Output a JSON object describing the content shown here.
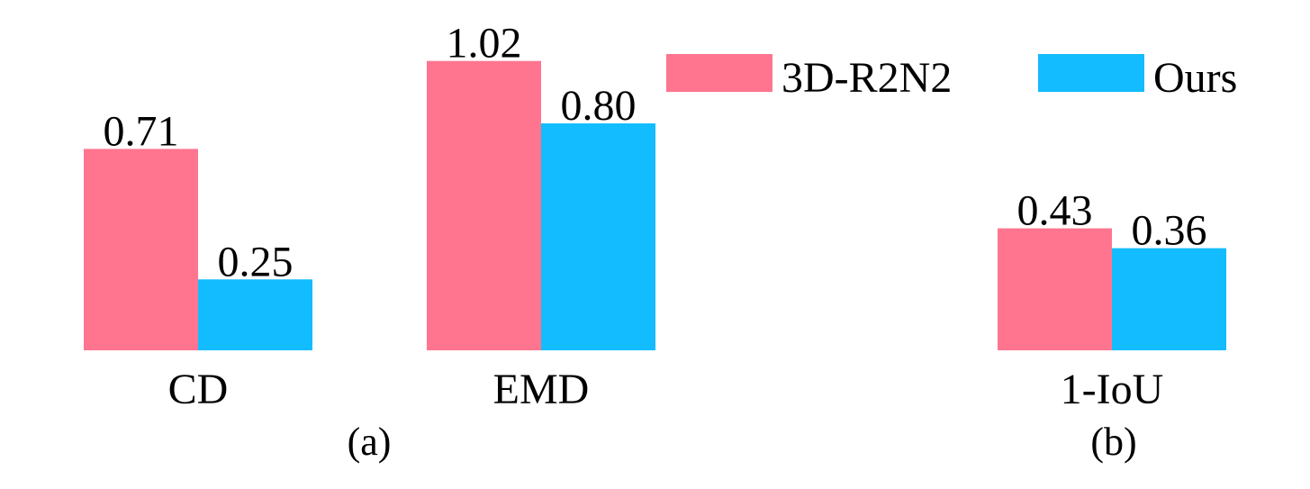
{
  "chart_data": {
    "type": "bar",
    "categories": [
      "CD",
      "EMD",
      "1-IoU"
    ],
    "series": [
      {
        "name": "3D-R2N2",
        "color": "#FF7590",
        "values": [
          0.71,
          1.02,
          0.43
        ]
      },
      {
        "name": "Ours",
        "color": "#12BCFF",
        "values": [
          0.25,
          0.8,
          0.36
        ]
      }
    ],
    "value_labels": [
      [
        "0.71",
        "1.02",
        "0.43"
      ],
      [
        "0.25",
        "0.80",
        "0.36"
      ]
    ],
    "panel_labels": [
      "(a)",
      "(b)"
    ],
    "legend": {
      "placement": "top-right"
    },
    "grid": false,
    "axes_visible": false
  }
}
